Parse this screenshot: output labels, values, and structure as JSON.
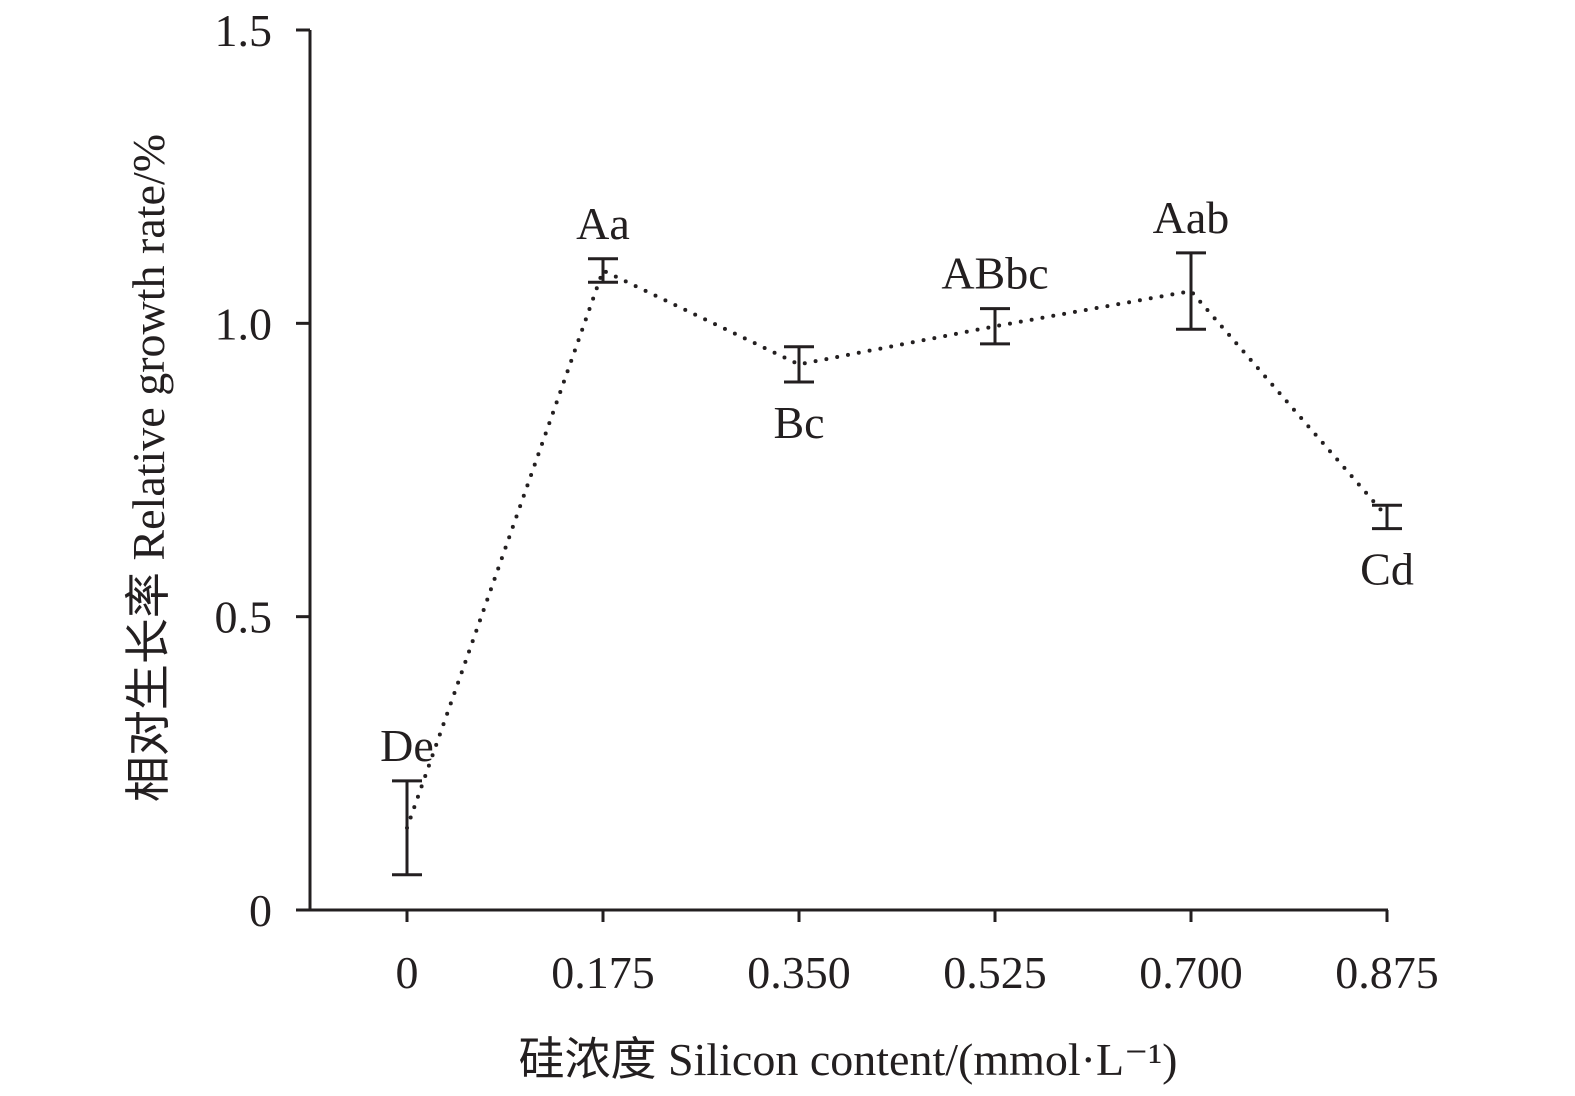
{
  "chart_data": {
    "type": "line",
    "title": "",
    "xlabel": "硅浓度 Silicon content/(mmol·L⁻¹)",
    "ylabel": "相对生长率 Relative growth rate/%",
    "categories": [
      "0",
      "0.175",
      "0.350",
      "0.525",
      "0.700",
      "0.875"
    ],
    "ylim": [
      0,
      1.5
    ],
    "y_ticks": [
      0,
      0.5,
      1.0,
      1.5
    ],
    "y_tick_labels": [
      "0",
      "0.5",
      "1.0",
      "1.5"
    ],
    "grid": false,
    "line_style": "dotted",
    "series": [
      {
        "values": [
          0.14,
          1.09,
          0.93,
          0.995,
          1.055,
          0.67
        ],
        "error": [
          0.08,
          0.02,
          0.03,
          0.03,
          0.065,
          0.02
        ],
        "labels": [
          "De",
          "Aa",
          "Bc",
          "ABbc",
          "Aab",
          "Cd"
        ],
        "label_position": [
          "above",
          "above",
          "below",
          "above",
          "above",
          "below"
        ]
      }
    ],
    "colors": {
      "ink": "#231f20"
    }
  }
}
